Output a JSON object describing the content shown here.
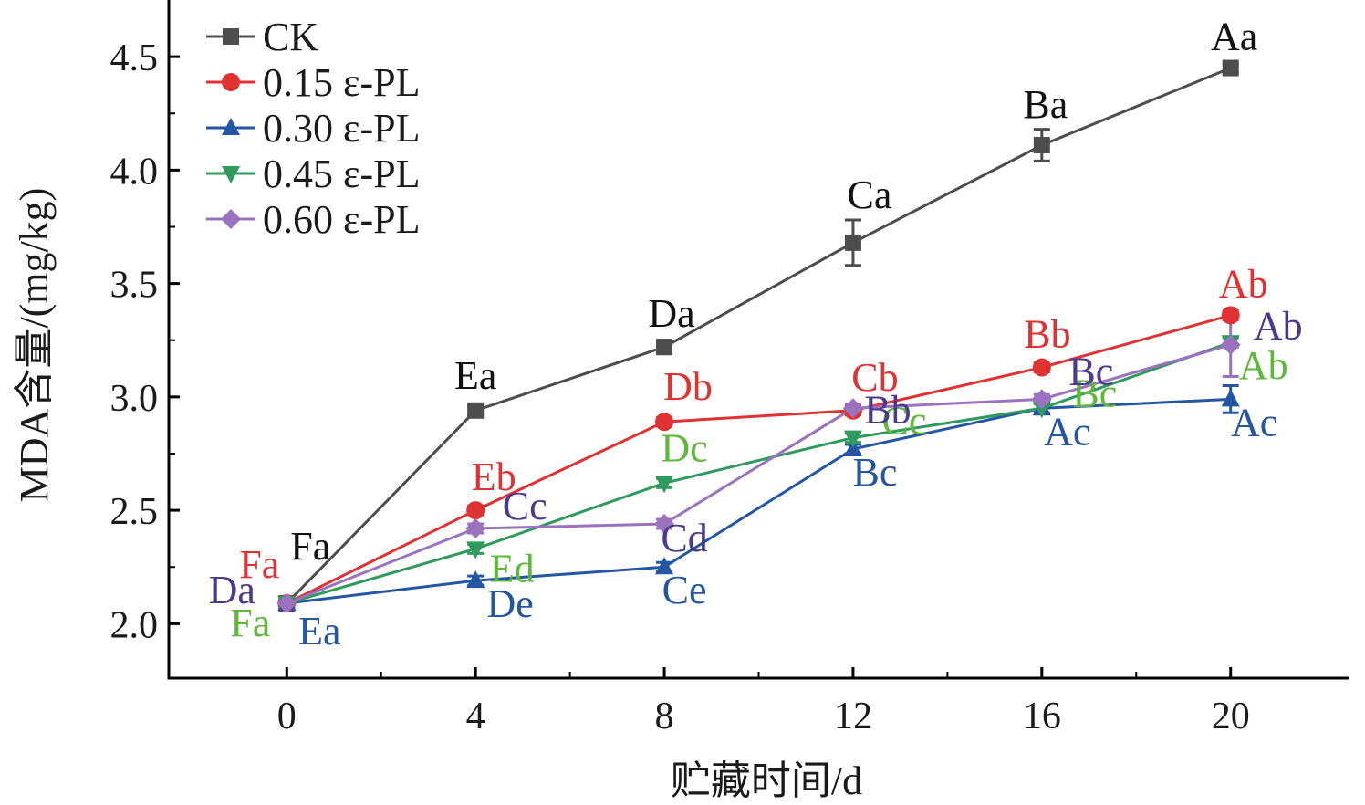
{
  "chart_data": {
    "type": "line",
    "xlabel": "贮藏时间/d",
    "ylabel": "MDA含量/(mg/kg)",
    "xlim": [
      -2.5,
      22.5
    ],
    "ylim": [
      1.76,
      4.75
    ],
    "x_ticks": [
      0,
      4,
      8,
      12,
      16,
      20
    ],
    "y_ticks": [
      2.0,
      2.5,
      3.0,
      3.5,
      4.0,
      4.5
    ],
    "y_tick_labels": [
      "2.0",
      "2.5",
      "3.0",
      "3.5",
      "4.0",
      "4.5"
    ],
    "grid": false,
    "legend_position": "top-left",
    "x": [
      0,
      4,
      8,
      12,
      16,
      20
    ],
    "series": [
      {
        "name": "CK",
        "color": "#4d4d4d",
        "marker": "square",
        "values": [
          2.09,
          2.94,
          3.22,
          3.68,
          4.11,
          4.45
        ],
        "errors": [
          0.0,
          0.02,
          0.03,
          0.1,
          0.07,
          0.02
        ],
        "labels": [
          "Fa",
          "Ea",
          "Da",
          "Ca",
          "Ba",
          "Aa"
        ]
      },
      {
        "name": "0.15 ε-PL",
        "color": "#e03232",
        "marker": "circle",
        "values": [
          2.09,
          2.5,
          2.89,
          2.94,
          3.13,
          3.36
        ],
        "errors": [
          0.0,
          0.02,
          0.02,
          0.02,
          0.02,
          0.02
        ],
        "labels": [
          "Fa",
          "Eb",
          "Db",
          "Cb",
          "Bb",
          "Ab"
        ]
      },
      {
        "name": "0.30 ε-PL",
        "color": "#2456a4",
        "marker": "triangle-up",
        "values": [
          2.09,
          2.19,
          2.25,
          2.77,
          2.95,
          2.99
        ],
        "errors": [
          0.0,
          0.02,
          0.02,
          0.02,
          0.02,
          0.06
        ],
        "labels": [
          "Ea",
          "De",
          "Ce",
          "Bc",
          "Ac",
          "Ac"
        ]
      },
      {
        "name": "0.45 ε-PL",
        "color": "#2e9a5c",
        "marker": "triangle-down",
        "values": [
          2.09,
          2.33,
          2.62,
          2.82,
          2.95,
          3.24
        ],
        "errors": [
          0.0,
          0.02,
          0.02,
          0.02,
          0.02,
          0.02
        ],
        "labels": [
          "Fa",
          "Ed",
          "Dc",
          "Cc",
          "Bc",
          "Ab"
        ],
        "label_color": "#5fb83a"
      },
      {
        "name": "0.60 ε-PL",
        "color": "#9a72bf",
        "marker": "diamond",
        "values": [
          2.09,
          2.42,
          2.44,
          2.95,
          2.99,
          3.23
        ],
        "errors": [
          0.0,
          0.02,
          0.02,
          0.02,
          0.02,
          0.14
        ],
        "labels": [
          "Da",
          "Cc",
          "Cd",
          "Bb",
          "Bc",
          "Ab"
        ],
        "label_color": "#4b3a8f"
      }
    ]
  }
}
